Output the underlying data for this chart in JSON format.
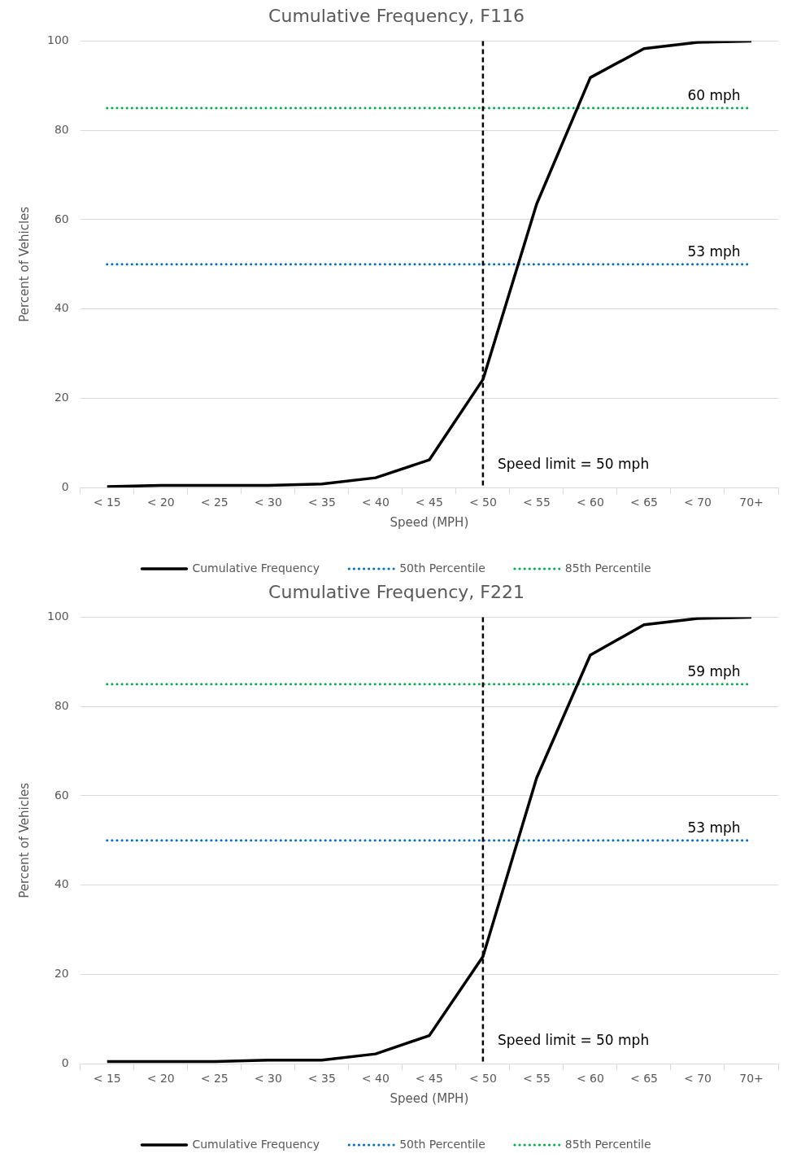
{
  "chart_data": [
    {
      "type": "line",
      "title": "Cumulative Frequency, F116",
      "xlabel": "Speed (MPH)",
      "ylabel": "Percent of Vehicles",
      "categories": [
        "< 15",
        "< 20",
        "< 25",
        "< 30",
        "< 35",
        "< 40",
        "< 45",
        "< 50",
        "< 55",
        "< 60",
        "< 65",
        "< 70",
        "70+"
      ],
      "series": [
        {
          "name": "Cumulative Frequency",
          "color": "#000000",
          "line_style": "solid",
          "values": [
            0.2,
            0.5,
            0.5,
            0.5,
            0.8,
            2.2,
            6.2,
            24.2,
            63.5,
            91.8,
            98.3,
            99.7,
            100
          ]
        },
        {
          "name": "50th Percentile",
          "color": "#0070c0",
          "line_style": "dotted",
          "values": [
            50,
            50,
            50,
            50,
            50,
            50,
            50,
            50,
            50,
            50,
            50,
            50,
            50
          ]
        },
        {
          "name": "85th Percentile",
          "color": "#00b050",
          "line_style": "dotted",
          "values": [
            85,
            85,
            85,
            85,
            85,
            85,
            85,
            85,
            85,
            85,
            85,
            85,
            85
          ]
        }
      ],
      "ylim": [
        0,
        100
      ],
      "yticks": [
        0,
        20,
        40,
        60,
        80,
        100
      ],
      "grid": "y",
      "legend": "bottom",
      "marker": "none",
      "ref_lines": [
        {
          "axis": "x",
          "value": "< 50",
          "label": "Speed limit = 50 mph",
          "color": "#000000",
          "line_style": "dashed"
        }
      ],
      "annotations": [
        {
          "text": "60 mph",
          "x": "< 70",
          "y": 85
        },
        {
          "text": "53 mph",
          "x": "< 70",
          "y": 50
        }
      ]
    },
    {
      "type": "line",
      "title": "Cumulative Frequency, F221",
      "xlabel": "Speed (MPH)",
      "ylabel": "Percent of Vehicles",
      "categories": [
        "< 15",
        "< 20",
        "< 25",
        "< 30",
        "< 35",
        "< 40",
        "< 45",
        "< 50",
        "< 55",
        "< 60",
        "< 65",
        "< 70",
        "70+"
      ],
      "series": [
        {
          "name": "Cumulative Frequency",
          "color": "#000000",
          "line_style": "solid",
          "values": [
            0.5,
            0.5,
            0.5,
            0.8,
            0.8,
            2.2,
            6.3,
            24,
            64,
            91.5,
            98.3,
            99.7,
            100
          ]
        },
        {
          "name": "50th Percentile",
          "color": "#0070c0",
          "line_style": "dotted",
          "values": [
            50,
            50,
            50,
            50,
            50,
            50,
            50,
            50,
            50,
            50,
            50,
            50,
            50
          ]
        },
        {
          "name": "85th Percentile",
          "color": "#00b050",
          "line_style": "dotted",
          "values": [
            85,
            85,
            85,
            85,
            85,
            85,
            85,
            85,
            85,
            85,
            85,
            85,
            85
          ]
        }
      ],
      "ylim": [
        0,
        100
      ],
      "yticks": [
        0,
        20,
        40,
        60,
        80,
        100
      ],
      "grid": "y",
      "legend": "bottom",
      "marker": "none",
      "ref_lines": [
        {
          "axis": "x",
          "value": "< 50",
          "label": "Speed limit = 50 mph",
          "color": "#000000",
          "line_style": "dashed"
        }
      ],
      "annotations": [
        {
          "text": "59 mph",
          "x": "< 70",
          "y": 85
        },
        {
          "text": "53 mph",
          "x": "< 70",
          "y": 50
        }
      ]
    }
  ]
}
